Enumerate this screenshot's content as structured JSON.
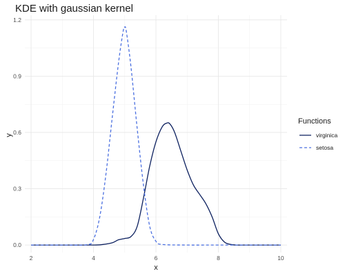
{
  "chart_data": {
    "type": "line",
    "title": "KDE with gaussian kernel",
    "xlabel": "x",
    "ylabel": "y",
    "xlim": [
      1.8,
      10.2
    ],
    "ylim": [
      -0.04,
      1.225
    ],
    "x_ticks": [
      2,
      4,
      6,
      8,
      10
    ],
    "y_ticks": [
      0.0,
      0.3,
      0.6,
      0.9,
      1.2
    ],
    "y_tick_labels": [
      "0.0",
      "0.3",
      "0.6",
      "0.9",
      "1.2"
    ],
    "x_tick_labels": [
      "2",
      "4",
      "6",
      "8",
      "10"
    ],
    "grid": true,
    "legend": {
      "title": "Functions",
      "position": "right"
    },
    "series": [
      {
        "name": "virginica",
        "color": "#0b1f5e",
        "dash": "solid",
        "x": [
          2.0,
          3.0,
          4.0,
          4.3,
          4.6,
          4.8,
          5.0,
          5.2,
          5.4,
          5.6,
          5.8,
          6.0,
          6.2,
          6.35,
          6.45,
          6.6,
          6.8,
          7.0,
          7.2,
          7.4,
          7.6,
          7.8,
          8.0,
          8.2,
          8.4,
          8.6,
          9.0,
          10.0
        ],
        "y": [
          0.0,
          0.0,
          0.0,
          0.003,
          0.012,
          0.028,
          0.035,
          0.045,
          0.1,
          0.25,
          0.42,
          0.55,
          0.63,
          0.65,
          0.645,
          0.6,
          0.5,
          0.4,
          0.32,
          0.27,
          0.22,
          0.15,
          0.06,
          0.015,
          0.003,
          0.0,
          0.0,
          0.0
        ]
      },
      {
        "name": "setosa",
        "color": "#4a6fe0",
        "dash": "dashed",
        "x": [
          2.0,
          3.0,
          3.8,
          4.0,
          4.2,
          4.4,
          4.6,
          4.8,
          4.95,
          5.0,
          5.05,
          5.2,
          5.4,
          5.6,
          5.8,
          6.0,
          6.2,
          7.0,
          8.0,
          10.0
        ],
        "y": [
          0.0,
          0.0,
          0.002,
          0.03,
          0.15,
          0.38,
          0.68,
          0.97,
          1.14,
          1.16,
          1.14,
          0.95,
          0.62,
          0.32,
          0.1,
          0.02,
          0.003,
          0.0,
          0.0,
          0.0
        ]
      }
    ]
  }
}
